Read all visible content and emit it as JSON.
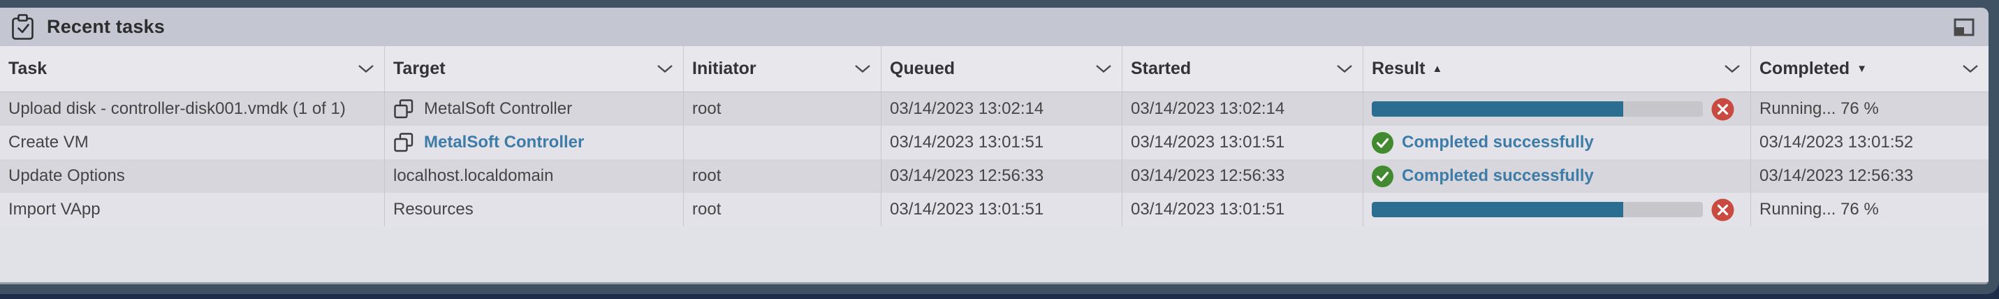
{
  "panel": {
    "title": "Recent tasks"
  },
  "table": {
    "columns": [
      {
        "label": "Task"
      },
      {
        "label": "Target"
      },
      {
        "label": "Initiator"
      },
      {
        "label": "Queued"
      },
      {
        "label": "Started"
      },
      {
        "label": "Result",
        "sort_indicator": "▲"
      },
      {
        "label": "Completed",
        "sort_indicator": "▼"
      }
    ],
    "rows": [
      {
        "task": "Upload disk - controller-disk001.vmdk (1 of 1)",
        "target": "MetalSoft Controller",
        "initiator": "root",
        "queued": "03/14/2023 13:02:14",
        "started": "03/14/2023 13:02:14",
        "result_type": "progress",
        "progress_percent": 76,
        "completed": "Running... 76 %"
      },
      {
        "task": "Create VM",
        "target": "MetalSoft Controller",
        "initiator": "",
        "queued": "03/14/2023 13:01:51",
        "started": "03/14/2023 13:01:51",
        "result_type": "success",
        "result_text": "Completed successfully",
        "completed": "03/14/2023 13:01:52"
      },
      {
        "task": "Update Options",
        "target": "localhost.localdomain",
        "initiator": "root",
        "queued": "03/14/2023 12:56:33",
        "started": "03/14/2023 12:56:33",
        "result_type": "success",
        "result_text": "Completed successfully",
        "completed": "03/14/2023 12:56:33"
      },
      {
        "task": "Import VApp",
        "target": "Resources",
        "initiator": "root",
        "queued": "03/14/2023 13:01:51",
        "started": "03/14/2023 13:01:51",
        "result_type": "progress",
        "progress_percent": 76,
        "completed": "Running... 76 %"
      }
    ]
  },
  "colors": {
    "progress_fill": "#2b6e91",
    "progress_track": "#c6c6cb",
    "success_green": "#418a2f",
    "error_red": "#c94a41",
    "link_blue": "#3e7ca8",
    "panel_header": "#c4c6d1",
    "frame_slate": "#3f5263",
    "backdrop_navy": "#1f2d49"
  }
}
